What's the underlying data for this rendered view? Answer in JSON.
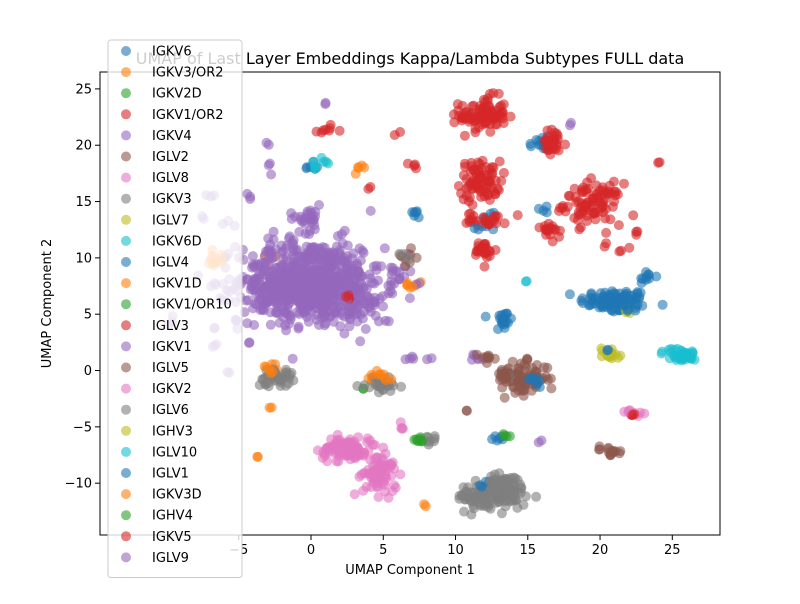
{
  "chart_data": {
    "type": "scatter",
    "title": "UMAP of Last Layer Embeddings Kappa/Lambda Subtypes FULL data",
    "xlabel": "UMAP Component 1",
    "ylabel": "UMAP Component 2",
    "xlim": [
      -14.6,
      28.3
    ],
    "ylim": [
      -14.6,
      26.5
    ],
    "xticks": [
      -5,
      0,
      5,
      10,
      15,
      20,
      25
    ],
    "yticks": [
      -10,
      -5,
      0,
      5,
      10,
      15,
      20,
      25
    ],
    "legend_position": "upper-left",
    "series": [
      {
        "name": "IGKV6",
        "color": "#1f77b4",
        "clusters": [
          {
            "x": 21,
            "y": 6.2,
            "sx": 1.2,
            "sy": 0.5,
            "n": 90
          },
          {
            "x": 13.3,
            "y": 4.5,
            "sx": 0.3,
            "sy": 0.6,
            "n": 20
          },
          {
            "x": 23.2,
            "y": 8.3,
            "sx": 0.3,
            "sy": 0.3,
            "n": 10
          },
          {
            "x": 15.8,
            "y": 20,
            "sx": 0.4,
            "sy": 0.6,
            "n": 12
          },
          {
            "x": 7.3,
            "y": 14,
            "sx": 0.3,
            "sy": 0.3,
            "n": 6
          },
          {
            "x": 12.3,
            "y": 13.4,
            "sx": 0.4,
            "sy": 0.5,
            "n": 8
          },
          {
            "x": 16.2,
            "y": 14.3,
            "sx": 0.2,
            "sy": 0.2,
            "n": 4
          },
          {
            "x": 13,
            "y": -6,
            "sx": 0.3,
            "sy": 0.2,
            "n": 6
          },
          {
            "x": 0,
            "y": 18.1,
            "sx": 0.3,
            "sy": 0.3,
            "n": 6
          }
        ]
      },
      {
        "name": "IGKV3/OR2",
        "color": "#ff7f0e",
        "clusters": [
          {
            "x": -2.8,
            "y": 0,
            "sx": 0.3,
            "sy": 0.4,
            "n": 8
          },
          {
            "x": 4.8,
            "y": -0.8,
            "sx": 0.5,
            "sy": 0.3,
            "n": 8
          },
          {
            "x": 3.4,
            "y": 18.3,
            "sx": 0.2,
            "sy": 0.2,
            "n": 3
          },
          {
            "x": 7.9,
            "y": -12,
            "sx": 0.1,
            "sy": 0.1,
            "n": 2
          },
          {
            "x": -3.7,
            "y": -7.6,
            "sx": 0.1,
            "sy": 0.1,
            "n": 2
          },
          {
            "x": -2.8,
            "y": -3.3,
            "sx": 0.1,
            "sy": 0.1,
            "n": 2
          },
          {
            "x": -2.7,
            "y": 10,
            "sx": 0.2,
            "sy": 0.2,
            "n": 3
          },
          {
            "x": 7.1,
            "y": 7.6,
            "sx": 0.3,
            "sy": 0.2,
            "n": 4
          }
        ]
      },
      {
        "name": "IGKV2D",
        "color": "#2ca02c",
        "clusters": [
          {
            "x": 7.6,
            "y": -6.2,
            "sx": 0.3,
            "sy": 0.2,
            "n": 6
          },
          {
            "x": 13.3,
            "y": -5.7,
            "sx": 0.1,
            "sy": 0.1,
            "n": 2
          },
          {
            "x": 3.7,
            "y": -1.6,
            "sx": 0.1,
            "sy": 0.1,
            "n": 2
          }
        ]
      },
      {
        "name": "IGKV1/OR2",
        "color": "#d62728",
        "clusters": [
          {
            "x": 11.9,
            "y": 22.7,
            "sx": 0.8,
            "sy": 0.8,
            "n": 90
          },
          {
            "x": 11.7,
            "y": 16.8,
            "sx": 0.7,
            "sy": 0.9,
            "n": 80
          },
          {
            "x": 19.5,
            "y": 14.8,
            "sx": 1,
            "sy": 0.9,
            "n": 90
          },
          {
            "x": 16.7,
            "y": 20.2,
            "sx": 0.5,
            "sy": 0.6,
            "n": 30
          },
          {
            "x": 12,
            "y": 10.6,
            "sx": 0.4,
            "sy": 0.5,
            "n": 25
          },
          {
            "x": 12.2,
            "y": 13.4,
            "sx": 0.7,
            "sy": 0.3,
            "n": 25
          },
          {
            "x": 16.6,
            "y": 12.2,
            "sx": 0.3,
            "sy": 0.4,
            "n": 12
          },
          {
            "x": 1,
            "y": 21.4,
            "sx": 0.5,
            "sy": 0.2,
            "n": 8
          },
          {
            "x": 4,
            "y": 16.2,
            "sx": 0.1,
            "sy": 0.1,
            "n": 2
          },
          {
            "x": 6,
            "y": 21.1,
            "sx": 0.1,
            "sy": 0.1,
            "n": 2
          },
          {
            "x": 7,
            "y": 18.3,
            "sx": 0.2,
            "sy": 0.2,
            "n": 4
          },
          {
            "x": 24,
            "y": 18.5,
            "sx": 0.1,
            "sy": 0.1,
            "n": 2
          },
          {
            "x": 22.3,
            "y": 12.3,
            "sx": 0.2,
            "sy": 0.2,
            "n": 3
          },
          {
            "x": 21.8,
            "y": 10.6,
            "sx": 0.3,
            "sy": 0.2,
            "n": 3
          },
          {
            "x": 20.4,
            "y": 11.1,
            "sx": 0.1,
            "sy": 0.1,
            "n": 2
          }
        ]
      },
      {
        "name": "IGKV4",
        "color": "#9467bd",
        "clusters": [
          {
            "x": 0,
            "y": 8,
            "sx": 2.5,
            "sy": 1.8,
            "n": 600
          },
          {
            "x": -0.3,
            "y": 13.5,
            "sx": 0.6,
            "sy": 0.6,
            "n": 30
          },
          {
            "x": 3,
            "y": 6,
            "sx": 1.2,
            "sy": 1,
            "n": 60
          },
          {
            "x": 7.5,
            "y": 1,
            "sx": 0.5,
            "sy": 0.2,
            "n": 6
          },
          {
            "x": 11.5,
            "y": 1.2,
            "sx": 0.4,
            "sy": 0.2,
            "n": 6
          },
          {
            "x": 6.3,
            "y": 8.8,
            "sx": 0.4,
            "sy": 0.6,
            "n": 10
          },
          {
            "x": -3,
            "y": 18.2,
            "sx": 0.3,
            "sy": 0.3,
            "n": 3
          },
          {
            "x": 1.1,
            "y": 23.7,
            "sx": 0.1,
            "sy": 0.1,
            "n": 2
          },
          {
            "x": 15.8,
            "y": -6.2,
            "sx": 0.1,
            "sy": 0.1,
            "n": 2
          },
          {
            "x": 18,
            "y": 22,
            "sx": 0.1,
            "sy": 0.1,
            "n": 2
          }
        ]
      },
      {
        "name": "IGLV2",
        "color": "#8c564b",
        "clusters": [
          {
            "x": 14.8,
            "y": -0.7,
            "sx": 0.8,
            "sy": 0.7,
            "n": 80
          },
          {
            "x": 20.7,
            "y": -7.1,
            "sx": 0.6,
            "sy": 0.2,
            "n": 15
          },
          {
            "x": 6.7,
            "y": 10.2,
            "sx": 0.4,
            "sy": 0.4,
            "n": 8
          },
          {
            "x": 12.1,
            "y": 1.1,
            "sx": 0.5,
            "sy": 0.2,
            "n": 6
          },
          {
            "x": 10.7,
            "y": -3.6,
            "sx": 0.1,
            "sy": 0.1,
            "n": 2
          }
        ]
      },
      {
        "name": "IGLV8",
        "color": "#e377c2",
        "clusters": [
          {
            "x": 2.5,
            "y": -7,
            "sx": 1,
            "sy": 0.6,
            "n": 60
          },
          {
            "x": 4.8,
            "y": -9.5,
            "sx": 0.6,
            "sy": 0.8,
            "n": 50
          },
          {
            "x": 22.2,
            "y": -3.8,
            "sx": 0.3,
            "sy": 0.2,
            "n": 8
          },
          {
            "x": 6.5,
            "y": -5,
            "sx": 0.2,
            "sy": 0.3,
            "n": 4
          }
        ]
      },
      {
        "name": "IGKV3",
        "color": "#7f7f7f",
        "clusters": [
          {
            "x": 12.5,
            "y": -11.2,
            "sx": 1.2,
            "sy": 0.6,
            "n": 120
          },
          {
            "x": -2.5,
            "y": -0.6,
            "sx": 0.6,
            "sy": 0.4,
            "n": 40
          },
          {
            "x": 5,
            "y": -1.3,
            "sx": 0.6,
            "sy": 0.3,
            "n": 30
          },
          {
            "x": 8,
            "y": -6.1,
            "sx": 0.2,
            "sy": 0.2,
            "n": 4
          },
          {
            "x": 6.5,
            "y": 10.4,
            "sx": 0.2,
            "sy": 0.2,
            "n": 3
          },
          {
            "x": 13.5,
            "y": -0.4,
            "sx": 0.3,
            "sy": 0.2,
            "n": 4
          }
        ]
      },
      {
        "name": "IGLV7",
        "color": "#bcbd22",
        "clusters": [
          {
            "x": 20.7,
            "y": 1.5,
            "sx": 0.4,
            "sy": 0.3,
            "n": 15
          },
          {
            "x": 21.8,
            "y": 5.3,
            "sx": 0.2,
            "sy": 0.2,
            "n": 3
          }
        ]
      },
      {
        "name": "IGKV6D",
        "color": "#17becf",
        "clusters": [
          {
            "x": 25.5,
            "y": 1.4,
            "sx": 0.6,
            "sy": 0.3,
            "n": 30
          },
          {
            "x": 14.9,
            "y": 8,
            "sx": 0.1,
            "sy": 0.1,
            "n": 2
          },
          {
            "x": 0.7,
            "y": 18.3,
            "sx": 0.3,
            "sy": 0.2,
            "n": 6
          }
        ]
      },
      {
        "name": "IGLV4",
        "color": "#1f77b4",
        "clusters": [
          {
            "x": 21.6,
            "y": 6,
            "sx": 0.6,
            "sy": 0.4,
            "n": 20
          },
          {
            "x": 15.8,
            "y": -1,
            "sx": 0.2,
            "sy": 0.2,
            "n": 4
          },
          {
            "x": 11.5,
            "y": 12.6,
            "sx": 0.1,
            "sy": 0.1,
            "n": 2
          },
          {
            "x": 12.2,
            "y": -9.8,
            "sx": 0.1,
            "sy": 0.1,
            "n": 2
          }
        ]
      },
      {
        "name": "IGKV1D",
        "color": "#ff7f0e",
        "clusters": [
          {
            "x": -6.8,
            "y": 9.8,
            "sx": 0.4,
            "sy": 0.6,
            "n": 12
          },
          {
            "x": 6.8,
            "y": 7.5,
            "sx": 0.3,
            "sy": 0.2,
            "n": 3
          },
          {
            "x": 5.3,
            "y": -0.7,
            "sx": 0.2,
            "sy": 0.2,
            "n": 3
          }
        ]
      },
      {
        "name": "IGKV1/OR10",
        "color": "#2ca02c",
        "clusters": [
          {
            "x": 13.6,
            "y": -5.8,
            "sx": 0.1,
            "sy": 0.1,
            "n": 2
          },
          {
            "x": 7.4,
            "y": -6.1,
            "sx": 0.1,
            "sy": 0.1,
            "n": 2
          }
        ]
      },
      {
        "name": "IGLV3",
        "color": "#d62728",
        "clusters": [
          {
            "x": 16.4,
            "y": 12.5,
            "sx": 0.3,
            "sy": 0.3,
            "n": 5
          },
          {
            "x": 22.3,
            "y": -3.9,
            "sx": 0.1,
            "sy": 0.1,
            "n": 2
          },
          {
            "x": 2.6,
            "y": 6.4,
            "sx": 0.1,
            "sy": 0.1,
            "n": 2
          }
        ]
      },
      {
        "name": "IGKV1",
        "color": "#9467bd",
        "clusters": [
          {
            "x": -1,
            "y": 7.2,
            "sx": 1.5,
            "sy": 1.2,
            "n": 200
          },
          {
            "x": -4.2,
            "y": 15.3,
            "sx": 0.3,
            "sy": 0.3,
            "n": 3
          },
          {
            "x": -3,
            "y": 20.2,
            "sx": 0.1,
            "sy": 0.1,
            "n": 2
          },
          {
            "x": 4.8,
            "y": 4.5,
            "sx": 0.3,
            "sy": 0.2,
            "n": 3
          }
        ]
      },
      {
        "name": "IGLV5",
        "color": "#8c564b",
        "clusters": [
          {
            "x": 13.3,
            "y": -0.8,
            "sx": 0.4,
            "sy": 0.5,
            "n": 15
          },
          {
            "x": 12.3,
            "y": 1.2,
            "sx": 0.2,
            "sy": 0.2,
            "n": 3
          }
        ]
      },
      {
        "name": "IGKV2",
        "color": "#e377c2",
        "clusters": [
          {
            "x": 2.2,
            "y": -6.9,
            "sx": 0.8,
            "sy": 0.5,
            "n": 40
          },
          {
            "x": 5,
            "y": -8.4,
            "sx": 0.5,
            "sy": 0.4,
            "n": 25
          },
          {
            "x": 22,
            "y": -3.6,
            "sx": 0.2,
            "sy": 0.1,
            "n": 4
          }
        ]
      },
      {
        "name": "IGLV6",
        "color": "#7f7f7f",
        "clusters": [
          {
            "x": 13.4,
            "y": -10,
            "sx": 0.6,
            "sy": 0.4,
            "n": 40
          },
          {
            "x": 8.5,
            "y": -5.8,
            "sx": 0.2,
            "sy": 0.2,
            "n": 3
          }
        ]
      },
      {
        "name": "IGHV3",
        "color": "#bcbd22",
        "clusters": [
          {
            "x": 20.9,
            "y": 1.2,
            "sx": 0.2,
            "sy": 0.2,
            "n": 4
          }
        ]
      },
      {
        "name": "IGLV10",
        "color": "#17becf",
        "clusters": [
          {
            "x": 25.8,
            "y": 1.2,
            "sx": 0.3,
            "sy": 0.2,
            "n": 10
          },
          {
            "x": 0.3,
            "y": 18,
            "sx": 0.1,
            "sy": 0.1,
            "n": 2
          }
        ]
      },
      {
        "name": "IGLV1",
        "color": "#1f77b4",
        "clusters": [
          {
            "x": 15.3,
            "y": -0.6,
            "sx": 0.2,
            "sy": 0.2,
            "n": 4
          },
          {
            "x": 20.5,
            "y": 1.8,
            "sx": 0.1,
            "sy": 0.1,
            "n": 2
          },
          {
            "x": 11.8,
            "y": -10.2,
            "sx": 0.1,
            "sy": 0.1,
            "n": 2
          }
        ]
      },
      {
        "name": "IGKV3D",
        "color": "#ff7f0e",
        "clusters": [
          {
            "x": -2.9,
            "y": 0,
            "sx": 0.2,
            "sy": 0.2,
            "n": 4
          },
          {
            "x": 4.5,
            "y": -0.3,
            "sx": 0.2,
            "sy": 0.2,
            "n": 4
          },
          {
            "x": 3.3,
            "y": 18.2,
            "sx": 0.1,
            "sy": 0.1,
            "n": 2
          }
        ]
      },
      {
        "name": "IGHV4",
        "color": "#2ca02c",
        "clusters": [
          {
            "x": 7.8,
            "y": -6.3,
            "sx": 0.1,
            "sy": 0.1,
            "n": 2
          }
        ]
      },
      {
        "name": "IGKV5",
        "color": "#d62728",
        "clusters": [
          {
            "x": 2.6,
            "y": 6.6,
            "sx": 0.1,
            "sy": 0.1,
            "n": 2
          },
          {
            "x": 22.2,
            "y": -4,
            "sx": 0.1,
            "sy": 0.1,
            "n": 2
          }
        ]
      },
      {
        "name": "IGLV9",
        "color": "#9467bd",
        "clusters": [
          {
            "x": -7,
            "y": 15.5,
            "sx": 0.2,
            "sy": 0.2,
            "n": 3
          },
          {
            "x": -9.5,
            "y": 4.7,
            "sx": 0.3,
            "sy": 0.3,
            "n": 3
          },
          {
            "x": -6.7,
            "y": 1.8,
            "sx": 0.3,
            "sy": 0.3,
            "n": 3
          },
          {
            "x": -5.8,
            "y": 13,
            "sx": 0.2,
            "sy": 0.2,
            "n": 3
          },
          {
            "x": -7.4,
            "y": 13.6,
            "sx": 0.2,
            "sy": 0.2,
            "n": 2
          },
          {
            "x": -5.7,
            "y": -0.2,
            "sx": 0.1,
            "sy": 0.1,
            "n": 2
          },
          {
            "x": -4.3,
            "y": 2.5,
            "sx": 0.1,
            "sy": 0.1,
            "n": 2
          },
          {
            "x": -6.7,
            "y": 3.8,
            "sx": 0.1,
            "sy": 0.1,
            "n": 2
          },
          {
            "x": -5.2,
            "y": 4.3,
            "sx": 0.1,
            "sy": 0.1,
            "n": 2
          }
        ]
      }
    ]
  }
}
